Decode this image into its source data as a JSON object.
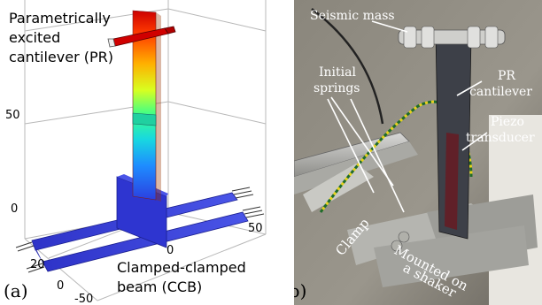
{
  "panel_a": {
    "label": "(a)",
    "pr_label": [
      "Parametrically",
      "excited",
      "cantilever (PR)"
    ],
    "ccb_label": [
      "Clamped-clamped",
      "beam (CCB)"
    ],
    "ticks": {
      "z_50": "50",
      "z_0": "0",
      "y_20": "20",
      "y_0": "0",
      "x_neg50": "-50",
      "x_0": "0",
      "x_50": "50"
    }
  },
  "panel_b": {
    "label": "(b)",
    "seismic_mass": "Seismic mass",
    "initial_springs": [
      "Initial",
      "springs"
    ],
    "pr_cantilever": [
      "PR",
      "cantilever"
    ],
    "piezo": [
      "Piezo",
      "transducer"
    ],
    "clamp": "Clamp",
    "mounted": [
      "Mounted on",
      "a shaker"
    ]
  },
  "colors": {
    "beam_blue": "#3b3fd6",
    "gradient": [
      "#cc0000",
      "#ff6a00",
      "#ffd800",
      "#a8ff3e",
      "#20e0c0",
      "#1aa6ff",
      "#2b3fe0"
    ]
  }
}
